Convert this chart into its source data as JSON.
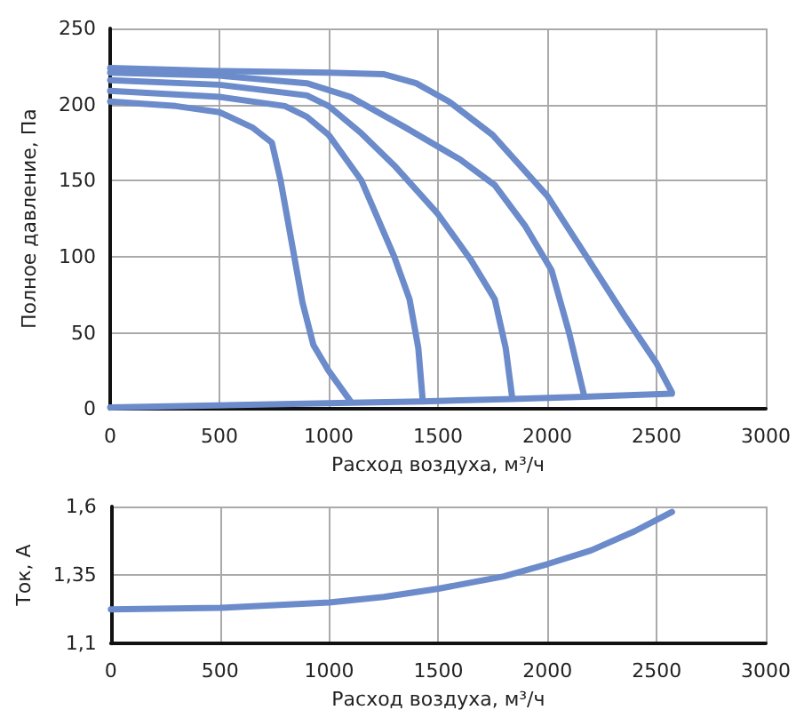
{
  "chart_data": [
    {
      "type": "line",
      "xlabel": "Расход воздуха, м³/ч",
      "ylabel": "Полное давление, Па",
      "xlim": [
        0,
        3000
      ],
      "ylim": [
        0,
        250
      ],
      "xticks": [
        0,
        500,
        1000,
        1500,
        2000,
        2500,
        3000
      ],
      "yticks": [
        0,
        50,
        100,
        150,
        200,
        250
      ],
      "grid": true,
      "marker": "none",
      "line_style": "solid",
      "series": [
        {
          "color": "#6b8bcb",
          "x": [
            0,
            300,
            500,
            650,
            740,
            780,
            830,
            880,
            930,
            1000,
            1100
          ],
          "values": [
            202,
            199,
            195,
            185,
            175,
            150,
            110,
            70,
            42,
            25,
            5
          ]
        },
        {
          "color": "#6b8bcb",
          "x": [
            0,
            500,
            800,
            900,
            1000,
            1150,
            1300,
            1370,
            1410,
            1430
          ],
          "values": [
            209,
            205,
            199,
            192,
            180,
            150,
            100,
            72,
            40,
            6
          ]
        },
        {
          "color": "#6b8bcb",
          "x": [
            0,
            500,
            900,
            1000,
            1150,
            1300,
            1500,
            1650,
            1760,
            1810,
            1840
          ],
          "values": [
            216,
            213,
            206,
            199,
            181,
            160,
            128,
            98,
            72,
            40,
            7
          ]
        },
        {
          "color": "#6b8bcb",
          "x": [
            0,
            500,
            900,
            1100,
            1350,
            1600,
            1760,
            1900,
            2020,
            2100,
            2170
          ],
          "values": [
            221,
            219,
            214,
            205,
            185,
            164,
            147,
            120,
            91,
            50,
            8
          ]
        },
        {
          "color": "#6b8bcb",
          "x": [
            0,
            500,
            1000,
            1250,
            1400,
            1550,
            1750,
            2000,
            2180,
            2350,
            2500,
            2570
          ],
          "values": [
            224,
            222,
            221,
            220,
            214,
            202,
            180,
            140,
            100,
            62,
            30,
            11
          ]
        },
        {
          "color": "#6b8bcb",
          "x": [
            0,
            1100,
            1430,
            1840,
            2170,
            2570
          ],
          "values": [
            1,
            4,
            5,
            6.5,
            8,
            10
          ]
        }
      ]
    },
    {
      "type": "line",
      "xlabel": "Расход воздуха, м³/ч",
      "ylabel": "Ток, А",
      "xlim": [
        0,
        3000
      ],
      "ylim": [
        1.1,
        1.6
      ],
      "xticks": [
        0,
        500,
        1000,
        1500,
        2000,
        2500,
        3000
      ],
      "yticks": [
        {
          "value": 1.1,
          "label": "1,1"
        },
        {
          "value": 1.35,
          "label": "1,35"
        },
        {
          "value": 1.6,
          "label": "1,6"
        }
      ],
      "grid": true,
      "marker": "none",
      "line_style": "solid",
      "series": [
        {
          "color": "#6b8bcb",
          "x": [
            0,
            500,
            1000,
            1250,
            1500,
            1800,
            2000,
            2200,
            2400,
            2570
          ],
          "values": [
            1.225,
            1.23,
            1.25,
            1.27,
            1.3,
            1.345,
            1.39,
            1.44,
            1.51,
            1.58
          ]
        }
      ]
    }
  ]
}
